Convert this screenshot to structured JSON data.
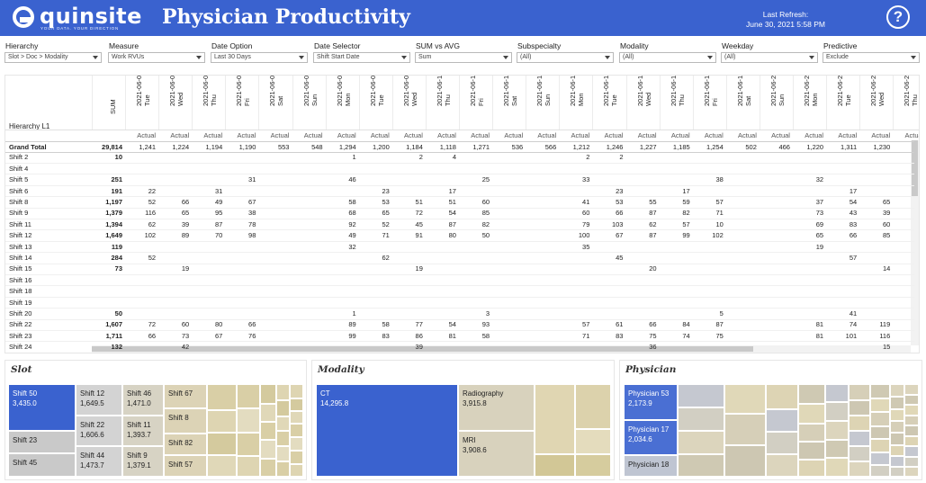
{
  "header": {
    "logo_word": "quinsite",
    "logo_tagline": "YOUR DATA. YOUR DIRECTION",
    "title": "Physician Productivity",
    "refresh_label": "Last Refresh:",
    "refresh_value": "June 30, 2021 5:58 PM",
    "help_glyph": "?"
  },
  "filters": [
    {
      "label": "Hierarchy",
      "value": "Slot > Doc > Modality"
    },
    {
      "label": "Measure",
      "value": "Work RVUs"
    },
    {
      "label": "Date Option",
      "value": "Last 30 Days"
    },
    {
      "label": "Date Selector",
      "value": "Shift Start Date"
    },
    {
      "label": "SUM vs AVG",
      "value": "Sum"
    },
    {
      "label": "Subspecialty",
      "value": "(All)"
    },
    {
      "label": "Modality",
      "value": "(All)"
    },
    {
      "label": "Weekday",
      "value": "(All)"
    },
    {
      "label": "Predictive",
      "value": "Exclude"
    }
  ],
  "table": {
    "hierarchy_label": "Hierarchy L1",
    "sum_header": "SUM",
    "actual_label": "Actual",
    "columns": [
      {
        "date": "2021-06-01",
        "day": "Tue"
      },
      {
        "date": "2021-06-02",
        "day": "Wed"
      },
      {
        "date": "2021-06-03",
        "day": "Thu"
      },
      {
        "date": "2021-06-04",
        "day": "Fri"
      },
      {
        "date": "2021-06-05",
        "day": "Sat"
      },
      {
        "date": "2021-06-06",
        "day": "Sun"
      },
      {
        "date": "2021-06-07",
        "day": "Mon"
      },
      {
        "date": "2021-06-08",
        "day": "Tue"
      },
      {
        "date": "2021-06-09",
        "day": "Wed"
      },
      {
        "date": "2021-06-10",
        "day": "Thu"
      },
      {
        "date": "2021-06-11",
        "day": "Fri"
      },
      {
        "date": "2021-06-12",
        "day": "Sat"
      },
      {
        "date": "2021-06-13",
        "day": "Sun"
      },
      {
        "date": "2021-06-14",
        "day": "Mon"
      },
      {
        "date": "2021-06-15",
        "day": "Tue"
      },
      {
        "date": "2021-06-16",
        "day": "Wed"
      },
      {
        "date": "2021-06-17",
        "day": "Thu"
      },
      {
        "date": "2021-06-18",
        "day": "Fri"
      },
      {
        "date": "2021-06-19",
        "day": "Sat"
      },
      {
        "date": "2021-06-20",
        "day": "Sun"
      },
      {
        "date": "2021-06-21",
        "day": "Mon"
      },
      {
        "date": "2021-06-22",
        "day": "Tue"
      },
      {
        "date": "2021-06-23",
        "day": "Wed"
      },
      {
        "date": "2021-06-24",
        "day": "Thu"
      }
    ],
    "rows": [
      {
        "name": "Grand Total",
        "sum": "29,814",
        "values": [
          "1,241",
          "1,224",
          "1,194",
          "1,190",
          "553",
          "548",
          "1,294",
          "1,200",
          "1,184",
          "1,118",
          "1,271",
          "536",
          "566",
          "1,212",
          "1,246",
          "1,227",
          "1,185",
          "1,254",
          "502",
          "466",
          "1,220",
          "1,311",
          "1,230",
          ""
        ]
      },
      {
        "name": "Shift 2",
        "sum": "10",
        "values": [
          "",
          "",
          "",
          "",
          "",
          "",
          "1",
          "",
          "2",
          "4",
          "",
          "",
          "",
          "2",
          "2",
          "",
          "",
          "",
          "",
          "",
          "",
          "",
          "",
          ""
        ]
      },
      {
        "name": "Shift 4",
        "sum": "",
        "values": [
          "",
          "",
          "",
          "",
          "",
          "",
          "",
          "",
          "",
          "",
          "",
          "",
          "",
          "",
          "",
          "",
          "",
          "",
          "",
          "",
          "",
          "",
          "",
          ""
        ]
      },
      {
        "name": "Shift 5",
        "sum": "251",
        "values": [
          "",
          "",
          "",
          "31",
          "",
          "",
          "46",
          "",
          "",
          "",
          "25",
          "",
          "",
          "33",
          "",
          "",
          "",
          "38",
          "",
          "",
          "32",
          "",
          "",
          ""
        ]
      },
      {
        "name": "Shift 6",
        "sum": "191",
        "values": [
          "22",
          "",
          "31",
          "",
          "",
          "",
          "",
          "23",
          "",
          "17",
          "",
          "",
          "",
          "",
          "23",
          "",
          "17",
          "",
          "",
          "",
          "",
          "17",
          "",
          ""
        ]
      },
      {
        "name": "Shift 8",
        "sum": "1,197",
        "values": [
          "52",
          "66",
          "49",
          "67",
          "",
          "",
          "58",
          "53",
          "51",
          "51",
          "60",
          "",
          "",
          "41",
          "53",
          "55",
          "59",
          "57",
          "",
          "",
          "37",
          "54",
          "65",
          ""
        ]
      },
      {
        "name": "Shift 9",
        "sum": "1,379",
        "values": [
          "116",
          "65",
          "95",
          "38",
          "",
          "",
          "68",
          "65",
          "72",
          "54",
          "85",
          "",
          "",
          "60",
          "66",
          "87",
          "82",
          "71",
          "",
          "",
          "73",
          "43",
          "39",
          ""
        ]
      },
      {
        "name": "Shift 11",
        "sum": "1,394",
        "values": [
          "62",
          "39",
          "87",
          "78",
          "",
          "",
          "92",
          "52",
          "45",
          "87",
          "82",
          "",
          "",
          "79",
          "103",
          "62",
          "57",
          "10",
          "",
          "",
          "69",
          "83",
          "60",
          ""
        ]
      },
      {
        "name": "Shift 12",
        "sum": "1,649",
        "values": [
          "102",
          "89",
          "70",
          "98",
          "",
          "",
          "49",
          "71",
          "91",
          "80",
          "50",
          "",
          "",
          "100",
          "67",
          "87",
          "99",
          "102",
          "",
          "",
          "65",
          "66",
          "85",
          ""
        ]
      },
      {
        "name": "Shift 13",
        "sum": "119",
        "values": [
          "",
          "",
          "",
          "",
          "",
          "",
          "32",
          "",
          "",
          "",
          "",
          "",
          "",
          "35",
          "",
          "",
          "",
          "",
          "",
          "",
          "19",
          "",
          "",
          ""
        ]
      },
      {
        "name": "Shift 14",
        "sum": "284",
        "values": [
          "52",
          "",
          "",
          "",
          "",
          "",
          "",
          "62",
          "",
          "",
          "",
          "",
          "",
          "",
          "45",
          "",
          "",
          "",
          "",
          "",
          "",
          "57",
          "",
          ""
        ]
      },
      {
        "name": "Shift 15",
        "sum": "73",
        "values": [
          "",
          "19",
          "",
          "",
          "",
          "",
          "",
          "",
          "19",
          "",
          "",
          "",
          "",
          "",
          "",
          "20",
          "",
          "",
          "",
          "",
          "",
          "",
          "14",
          ""
        ]
      },
      {
        "name": "Shift 16",
        "sum": "",
        "values": [
          "",
          "",
          "",
          "",
          "",
          "",
          "",
          "",
          "",
          "",
          "",
          "",
          "",
          "",
          "",
          "",
          "",
          "",
          "",
          "",
          "",
          "",
          "",
          ""
        ]
      },
      {
        "name": "Shift 18",
        "sum": "",
        "values": [
          "",
          "",
          "",
          "",
          "",
          "",
          "",
          "",
          "",
          "",
          "",
          "",
          "",
          "",
          "",
          "",
          "",
          "",
          "",
          "",
          "",
          "",
          "",
          ""
        ]
      },
      {
        "name": "Shift 19",
        "sum": "",
        "values": [
          "",
          "",
          "",
          "",
          "",
          "",
          "",
          "",
          "",
          "",
          "",
          "",
          "",
          "",
          "",
          "",
          "",
          "",
          "",
          "",
          "",
          "",
          "",
          ""
        ]
      },
      {
        "name": "Shift 20",
        "sum": "50",
        "values": [
          "",
          "",
          "",
          "",
          "",
          "",
          "1",
          "",
          "",
          "",
          "3",
          "",
          "",
          "",
          "",
          "",
          "",
          "5",
          "",
          "",
          "",
          "41",
          "",
          ""
        ]
      },
      {
        "name": "Shift 22",
        "sum": "1,607",
        "values": [
          "72",
          "60",
          "80",
          "66",
          "",
          "",
          "89",
          "58",
          "77",
          "54",
          "93",
          "",
          "",
          "57",
          "61",
          "66",
          "84",
          "87",
          "",
          "",
          "81",
          "74",
          "119",
          ""
        ]
      },
      {
        "name": "Shift 23",
        "sum": "1,711",
        "values": [
          "66",
          "73",
          "67",
          "76",
          "",
          "",
          "99",
          "83",
          "86",
          "81",
          "58",
          "",
          "",
          "71",
          "83",
          "75",
          "74",
          "75",
          "",
          "",
          "81",
          "101",
          "116",
          ""
        ]
      },
      {
        "name": "Shift 24",
        "sum": "132",
        "values": [
          "",
          "42",
          "",
          "",
          "",
          "",
          "",
          "",
          "39",
          "",
          "",
          "",
          "",
          "",
          "",
          "36",
          "",
          "",
          "",
          "",
          "",
          "",
          "15",
          ""
        ]
      }
    ]
  },
  "slot_panel": {
    "title": "Slot",
    "tiles": [
      {
        "name": "Shift 50",
        "value": "3,435.0",
        "color": "#3a62cf"
      },
      {
        "name": "Shift 23",
        "value": "",
        "color": "#c9c9c9"
      },
      {
        "name": "Shift 45",
        "value": "",
        "color": "#c9c9c9"
      },
      {
        "name": "Shift 12",
        "value": "1,649.5",
        "color": "#d3d3d3"
      },
      {
        "name": "Shift 22",
        "value": "1,606.6",
        "color": "#d3d3d3"
      },
      {
        "name": "Shift 44",
        "value": "1,473.7",
        "color": "#d3d3d3"
      },
      {
        "name": "Shift 46",
        "value": "1,471.0",
        "color": "#d7d3c4"
      },
      {
        "name": "Shift 11",
        "value": "1,393.7",
        "color": "#d7d3c4"
      },
      {
        "name": "Shift 9",
        "value": "1,379.1",
        "color": "#d7d3c4"
      },
      {
        "name": "Shift 67",
        "value": "",
        "color": "#dcd3b6"
      },
      {
        "name": "Shift 8",
        "value": "",
        "color": "#dcd3b6"
      },
      {
        "name": "Shift 82",
        "value": "",
        "color": "#dcd3b6"
      },
      {
        "name": "Shift 57",
        "value": "",
        "color": "#dcd3b6"
      }
    ]
  },
  "modality_panel": {
    "title": "Modality",
    "tiles": [
      {
        "name": "CT",
        "value": "14,295.8",
        "color": "#3a62cf"
      },
      {
        "name": "Radiography",
        "value": "3,915.8",
        "color": "#d8d2bd"
      },
      {
        "name": "MRI",
        "value": "3,908.6",
        "color": "#d8d2bd"
      }
    ]
  },
  "physician_panel": {
    "title": "Physician",
    "tiles": [
      {
        "name": "Physician 53",
        "value": "2,173.9",
        "color": "#4a6fd3"
      },
      {
        "name": "Physician 17",
        "value": "2,034.6",
        "color": "#4a6fd3"
      },
      {
        "name": "Physician 18",
        "value": "",
        "color": "#bfc5d2"
      }
    ]
  },
  "colors": {
    "header_blue": "#3a62cf",
    "tan": "#d9cfa6",
    "gray": "#cfcfcf"
  },
  "icons": {
    "help": "question-circle-icon",
    "dropdown": "chevron-down-icon"
  }
}
